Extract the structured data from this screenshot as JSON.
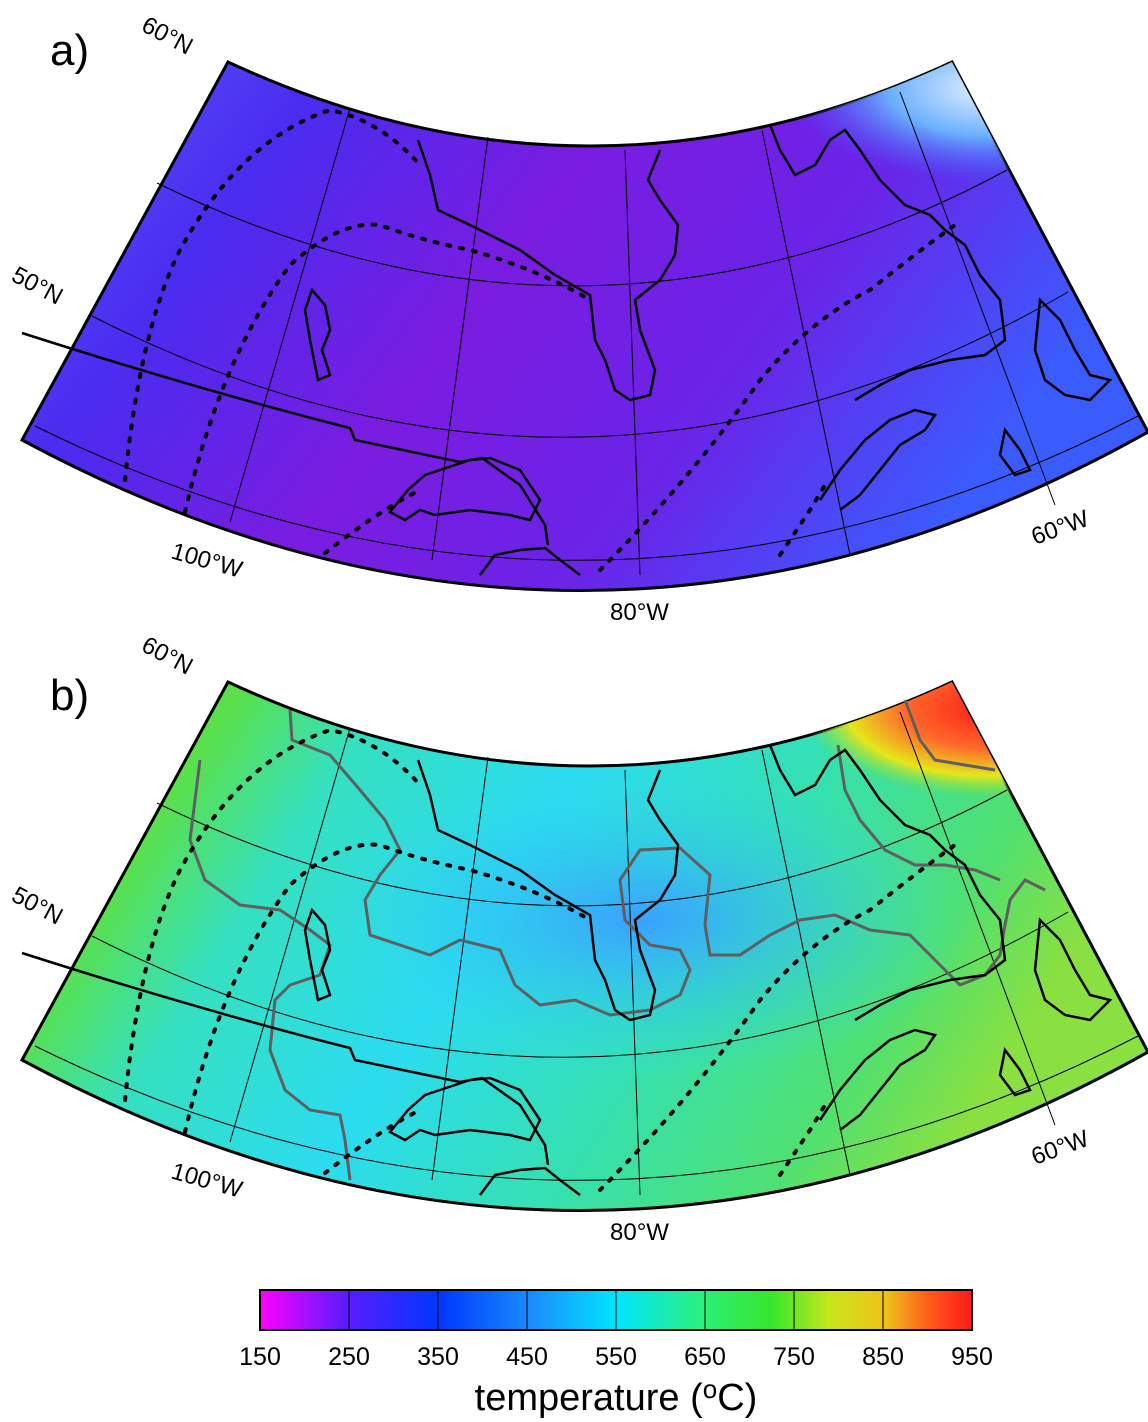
{
  "panels": [
    {
      "letter": "a)",
      "lat_labels": [
        "60°N",
        "50°N"
      ],
      "lon_labels": [
        "100°W",
        "80°W",
        "60°W"
      ],
      "field": "temperature, low range (purple–blue)"
    },
    {
      "letter": "b)",
      "lat_labels": [
        "60°N",
        "50°N"
      ],
      "lon_labels": [
        "100°W",
        "80°W",
        "60°W"
      ],
      "field": "temperature, higher range (cyan–green–red)"
    }
  ],
  "colorbar": {
    "ticks": [
      "150",
      "250",
      "350",
      "450",
      "550",
      "650",
      "750",
      "850",
      "950"
    ],
    "title_prefix": "temperature (",
    "title_sup": "o",
    "title_suffix": "C)",
    "colors": [
      "#ff00ff",
      "#5a1cff",
      "#0036ff",
      "#1a8cff",
      "#00e5ff",
      "#2bf07a",
      "#38e62b",
      "#c9e61a",
      "#f0c01a",
      "#ff5a1a",
      "#ff1a1a"
    ]
  },
  "styles": {
    "coastline": "#000000",
    "contour_gray": "#5f5f5f",
    "graticule": "#000000"
  }
}
